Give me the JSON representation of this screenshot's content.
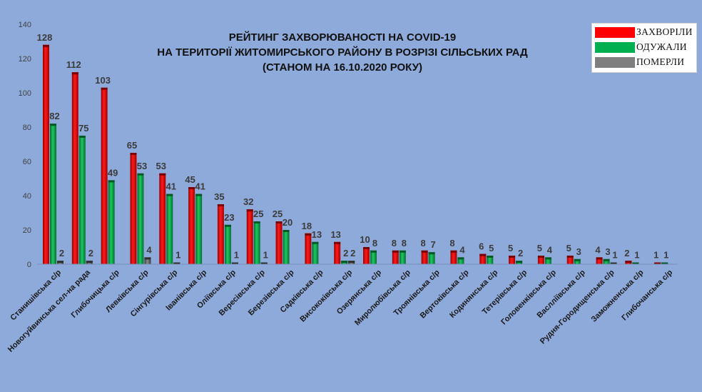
{
  "chart_data": {
    "type": "bar",
    "title_lines": [
      "РЕЙТИНГ ЗАХВОРЮВАНОСТІ НА COVID-19",
      "НА ТЕРИТОРІЇ ЖИТОМИРСЬКОГО РАЙОНУ В РОЗРІЗІ СІЛЬСЬКИХ РАД",
      "(СТАНОМ НА 16.10.2020 РОКУ)"
    ],
    "categories": [
      "Станишівська с/р",
      "Новогуйвинська сел-на рада",
      "Глибочицька с/р",
      "Левківська с/р",
      "Сінгурівська с/р",
      "Іванівська с/р",
      "Оліївська с/р",
      "Вересівська с/р",
      "Березівська с/р",
      "Садківська с/р",
      "Висококівська с/р",
      "Озерянська с/р",
      "Миролюбівська с/р",
      "Троянівська с/р",
      "Вертоківська с/р",
      "Кодинянська с/р",
      "Тетерівська с/р",
      "Головенківська с/р",
      "Васлліївська с/р",
      "Рудня-Городищенська с/р",
      "Заможненська с/р",
      "Глибочанська с/р"
    ],
    "series": [
      {
        "name": "ЗАХВОРІЛИ",
        "color": "#ff0000",
        "values": [
          128,
          112,
          103,
          65,
          53,
          45,
          35,
          32,
          25,
          18,
          13,
          10,
          8,
          8,
          8,
          6,
          5,
          5,
          5,
          4,
          2,
          1
        ]
      },
      {
        "name": "ОДУЖАЛИ",
        "color": "#00b050",
        "values": [
          82,
          75,
          49,
          53,
          41,
          41,
          23,
          25,
          20,
          13,
          2,
          8,
          8,
          7,
          4,
          5,
          2,
          4,
          3,
          3,
          1,
          1
        ]
      },
      {
        "name": "ПОМЕРЛИ",
        "color": "#808080",
        "values": [
          2,
          2,
          0,
          4,
          1,
          0,
          1,
          1,
          0,
          0,
          2,
          0,
          0,
          0,
          0,
          0,
          0,
          0,
          0,
          1,
          0,
          0
        ]
      }
    ],
    "value_labels_shown": {
      "ПОМЕРЛИ": [
        2,
        2,
        null,
        4,
        1,
        null,
        1,
        1,
        null,
        null,
        2,
        null,
        null,
        null,
        null,
        null,
        null,
        null,
        null,
        1,
        null,
        null
      ]
    },
    "ylim": [
      0,
      140
    ],
    "yticks": [
      "0",
      "20",
      "40",
      "60",
      "80",
      "100",
      "120",
      "140"
    ],
    "grid": false,
    "legend_position": "top-right"
  }
}
